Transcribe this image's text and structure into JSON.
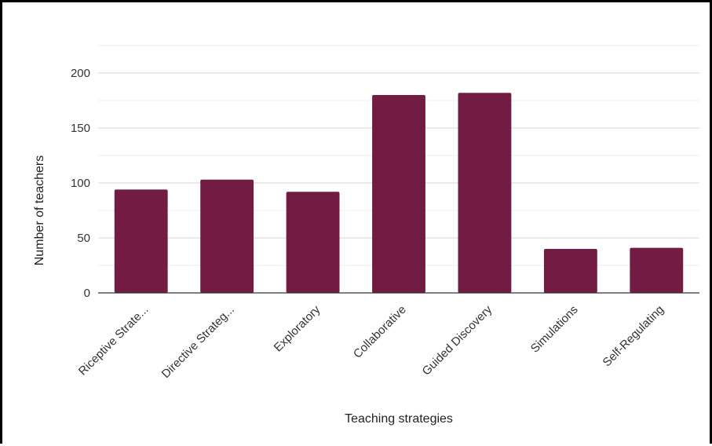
{
  "chart_data": {
    "type": "bar",
    "title": "",
    "xlabel": "Teaching strategies",
    "ylabel": "Number of teachers",
    "categories": [
      "Riceptive Strate...",
      "Directive Strateg...",
      "Exploratory",
      "Collaborative",
      "Guided Discovery",
      "Simulations",
      "Self-Regulating"
    ],
    "values": [
      94,
      103,
      92,
      180,
      182,
      40,
      41
    ],
    "ylim": [
      0,
      225
    ],
    "yticks": [
      0,
      50,
      100,
      150,
      200
    ],
    "gridlines": "major and minor, every 25",
    "legend": "none",
    "bar_color": "#721c44"
  }
}
